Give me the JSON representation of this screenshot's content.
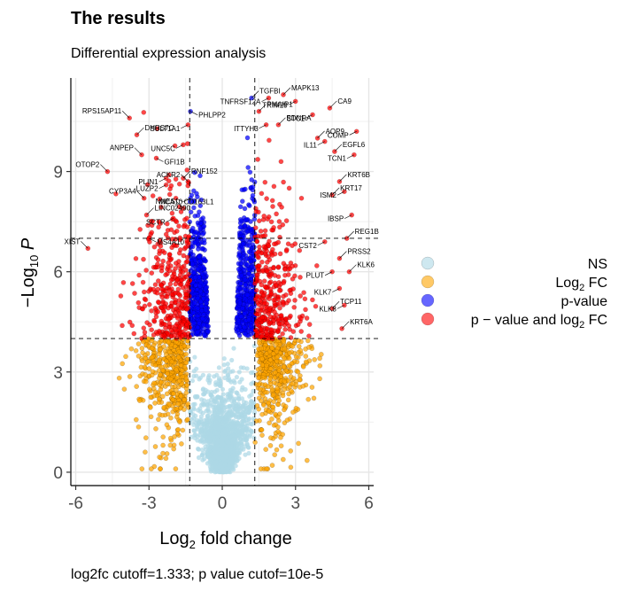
{
  "title": "The results",
  "subtitle": "Differential expression analysis",
  "caption": "log2fc cutoff=1.333; p value cutof=10e-5",
  "chart_data": {
    "type": "scatter",
    "xlabel_base": "Log",
    "xlabel_sub": "2",
    "xlabel_rest": " fold change",
    "ylabel_minus": "−Log",
    "ylabel_sub": "10",
    "ylabel_rest": " P",
    "xlim": [
      -6.2,
      6.2
    ],
    "ylim": [
      -0.4,
      11.8
    ],
    "x_ticks": [
      -6,
      -3,
      0,
      3,
      6
    ],
    "x_tick_labels": [
      "-6",
      "-3",
      "0",
      "3",
      "6"
    ],
    "y_ticks": [
      0,
      3,
      6,
      9
    ],
    "y_tick_labels": [
      "0",
      "3",
      "6",
      "9"
    ],
    "fc_cutoff": 1.333,
    "p_cutoff": 4,
    "high_p_line": 7,
    "grid": true,
    "legend_position": "right",
    "legend": [
      {
        "label_pre": "NS",
        "label_sub": "",
        "label_post": "",
        "color": "#add8e6"
      },
      {
        "label_pre": "Log",
        "label_sub": "2",
        "label_post": " FC",
        "color": "#ffa500"
      },
      {
        "label_pre": "p-value",
        "label_sub": "",
        "label_post": "",
        "color": "#0000ff"
      },
      {
        "label_pre": "p − value and log",
        "label_sub": "2",
        "label_post": " FC",
        "color": "#ff0000"
      }
    ],
    "labeled_genes": [
      {
        "name": "TGFBI",
        "x": 1.2,
        "y": 11.2
      },
      {
        "name": "TNFRSF12A",
        "x": 1.9,
        "y": 11.2
      },
      {
        "name": "MAPK13",
        "x": 2.5,
        "y": 11.3
      },
      {
        "name": "TRIM29",
        "x": 3.0,
        "y": 11.1
      },
      {
        "name": "PMAIP1",
        "x": 1.5,
        "y": 10.8
      },
      {
        "name": "STC1",
        "x": 3.7,
        "y": 10.7
      },
      {
        "name": "CA9",
        "x": 4.4,
        "y": 10.9
      },
      {
        "name": "ITTYH3",
        "x": 1.8,
        "y": 10.4
      },
      {
        "name": "EDNRA",
        "x": 2.3,
        "y": 10.4
      },
      {
        "name": "COMP",
        "x": 5.5,
        "y": 10.2
      },
      {
        "name": "AQP9",
        "x": 3.9,
        "y": 10.0
      },
      {
        "name": "IL11",
        "x": 4.2,
        "y": 9.9
      },
      {
        "name": "EGFL6",
        "x": 4.6,
        "y": 9.6
      },
      {
        "name": "TCN1",
        "x": 5.4,
        "y": 9.5
      },
      {
        "name": "KRT6B",
        "x": 4.8,
        "y": 8.7
      },
      {
        "name": "ISM2",
        "x": 5.0,
        "y": 8.4
      },
      {
        "name": "KRT17",
        "x": 4.5,
        "y": 8.3
      },
      {
        "name": "IBSP",
        "x": 5.3,
        "y": 7.7
      },
      {
        "name": "REG1B",
        "x": 5.1,
        "y": 7.0
      },
      {
        "name": "CST2",
        "x": 4.2,
        "y": 6.9
      },
      {
        "name": "PRSS2",
        "x": 4.8,
        "y": 6.4
      },
      {
        "name": "PLUT",
        "x": 4.5,
        "y": 6.0
      },
      {
        "name": "KLK6",
        "x": 5.2,
        "y": 6.0
      },
      {
        "name": "KLK7",
        "x": 4.8,
        "y": 5.5
      },
      {
        "name": "TCP11",
        "x": 4.5,
        "y": 4.9
      },
      {
        "name": "KLK8",
        "x": 5.0,
        "y": 5.0
      },
      {
        "name": "KRT6A",
        "x": 4.9,
        "y": 4.3
      },
      {
        "name": "PHLPP2",
        "x": -1.3,
        "y": 10.8
      },
      {
        "name": "RPS15AP11",
        "x": -3.8,
        "y": 10.6
      },
      {
        "name": "SULT1A1",
        "x": -1.4,
        "y": 10.4
      },
      {
        "name": "DHRS7C",
        "x": -3.5,
        "y": 10.1
      },
      {
        "name": "UNC5C",
        "x": -1.6,
        "y": 9.8
      },
      {
        "name": "ANPEP",
        "x": -3.3,
        "y": 9.5
      },
      {
        "name": "GFI1B",
        "x": -2.7,
        "y": 9.4
      },
      {
        "name": "OTOP2",
        "x": -4.7,
        "y": 9.0
      },
      {
        "name": "PLIN1",
        "x": -2.3,
        "y": 8.8
      },
      {
        "name": "RNF152",
        "x": -1.6,
        "y": 8.8
      },
      {
        "name": "LUZP2",
        "x": -2.3,
        "y": 8.6
      },
      {
        "name": "ACKR2",
        "x": -1.4,
        "y": 8.7
      },
      {
        "name": "CD163L1",
        "x": -1.9,
        "y": 8.2
      },
      {
        "name": "CYP3A4",
        "x": -3.2,
        "y": 8.2
      },
      {
        "name": "MCA10",
        "x": -1.3,
        "y": 8.2
      },
      {
        "name": "LINC02490",
        "x": -3.1,
        "y": 7.7
      },
      {
        "name": "SCTR",
        "x": -2.0,
        "y": 7.6
      },
      {
        "name": "NNES",
        "x": -1.6,
        "y": 7.9
      },
      {
        "name": "MS4A10",
        "x": -3.0,
        "y": 7.0
      },
      {
        "name": "XIST",
        "x": -5.5,
        "y": 6.7
      }
    ]
  }
}
